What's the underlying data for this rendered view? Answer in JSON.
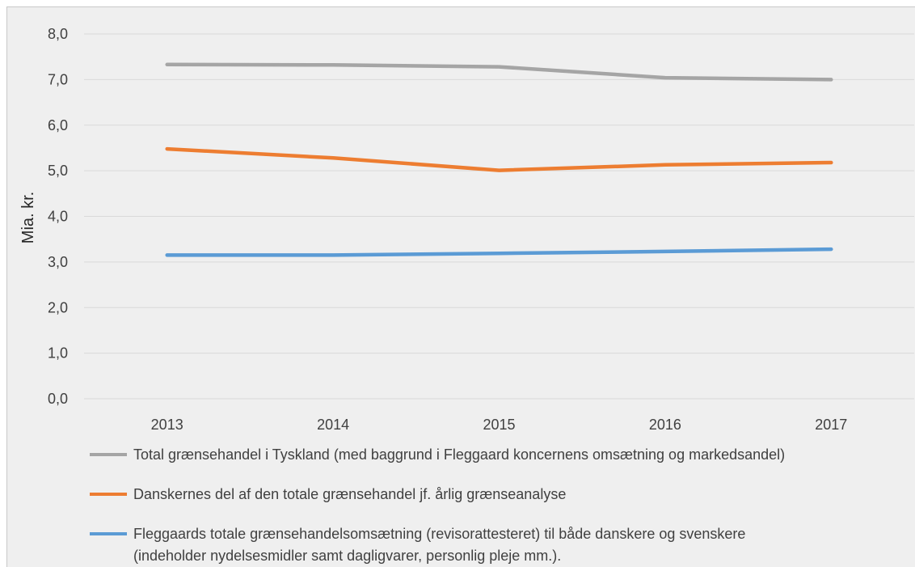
{
  "chart_data": {
    "type": "line",
    "categories": [
      "2013",
      "2014",
      "2015",
      "2016",
      "2017"
    ],
    "ylabel": "Mia. kr.",
    "ylim": [
      0,
      8
    ],
    "yticks": [
      "0,0",
      "1,0",
      "2,0",
      "3,0",
      "4,0",
      "5,0",
      "6,0",
      "7,0",
      "8,0"
    ],
    "grid": true,
    "legend_position": "bottom",
    "series": [
      {
        "name": "Total grænsehandel i Tyskland (med baggrund i Fleggaard koncernens omsætning og markedsandel)",
        "name_lines": [
          "Total grænsehandel i Tyskland (med baggrund i Fleggaard koncernens omsætning og markedsandel)"
        ],
        "color": "#a5a5a5",
        "values": [
          7.33,
          7.32,
          7.28,
          7.04,
          7.0
        ]
      },
      {
        "name": "Danskernes del af den totale grænsehandel jf. årlig grænseanalyse",
        "name_lines": [
          "Danskernes del af den totale grænsehandel jf. årlig grænseanalyse"
        ],
        "color": "#ed7d31",
        "values": [
          5.48,
          5.28,
          5.01,
          5.13,
          5.18
        ]
      },
      {
        "name": "Fleggaards totale grænsehandelsomsætning (revisorattesteret) til både danskere og svenskere (indeholder nydelsesmidler samt dagligvarer, personlig pleje mm.).",
        "name_lines": [
          "Fleggaards totale grænsehandelsomsætning (revisorattesteret) til både danskere og svenskere",
          "(indeholder nydelsesmidler samt dagligvarer, personlig pleje mm.)."
        ],
        "color": "#5b9bd5",
        "values": [
          3.15,
          3.15,
          3.19,
          3.23,
          3.28
        ]
      }
    ]
  }
}
